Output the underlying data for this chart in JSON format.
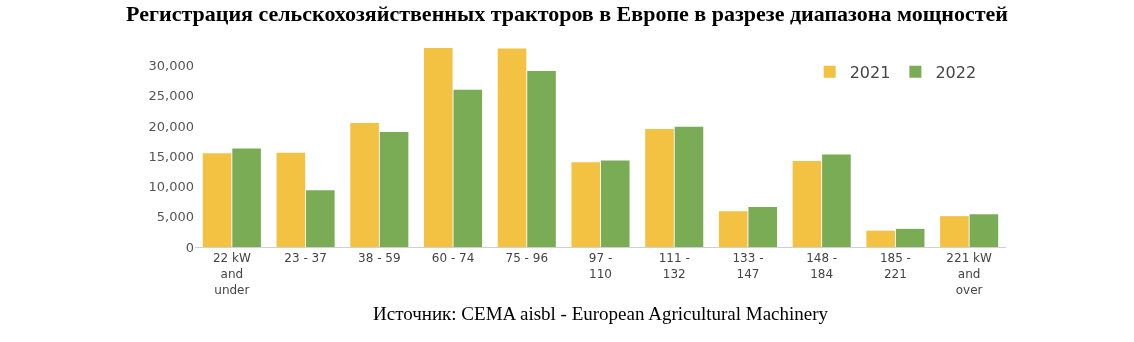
{
  "chart_data": {
    "type": "bar",
    "title": "Регистрация сельскохозяйственных тракторов в Европе в разрезе диапазона мощностей",
    "categories": [
      "22 kW and under",
      "23 - 37",
      "38 - 59",
      "60 - 74",
      "75 - 96",
      "97 - 110",
      "111 - 132",
      "133 - 147",
      "148 - 184",
      "185 - 221",
      "221 kW and over"
    ],
    "series": [
      {
        "name": "2021",
        "color": "#f4c242",
        "values": [
          15500,
          15600,
          20500,
          32900,
          32800,
          14000,
          19500,
          5900,
          14200,
          2700,
          5100
        ]
      },
      {
        "name": "2022",
        "color": "#7aab55",
        "values": [
          16300,
          9400,
          19000,
          26000,
          29100,
          14300,
          19900,
          6600,
          15300,
          3000,
          5400
        ]
      }
    ],
    "ylim": [
      0,
      32900
    ],
    "yticks": [
      {
        "value": 0,
        "label": "0"
      },
      {
        "value": 5000,
        "label": "5,000"
      },
      {
        "value": 10000,
        "label": "10,000"
      },
      {
        "value": 15000,
        "label": "15,000"
      },
      {
        "value": 20000,
        "label": "20,000"
      },
      {
        "value": 25000,
        "label": "25,000"
      },
      {
        "value": 30000,
        "label": "30,000"
      }
    ],
    "legend": "top right",
    "annotations": [
      "Источник: CEMA aisbl - European Agricultural Machinery"
    ]
  }
}
